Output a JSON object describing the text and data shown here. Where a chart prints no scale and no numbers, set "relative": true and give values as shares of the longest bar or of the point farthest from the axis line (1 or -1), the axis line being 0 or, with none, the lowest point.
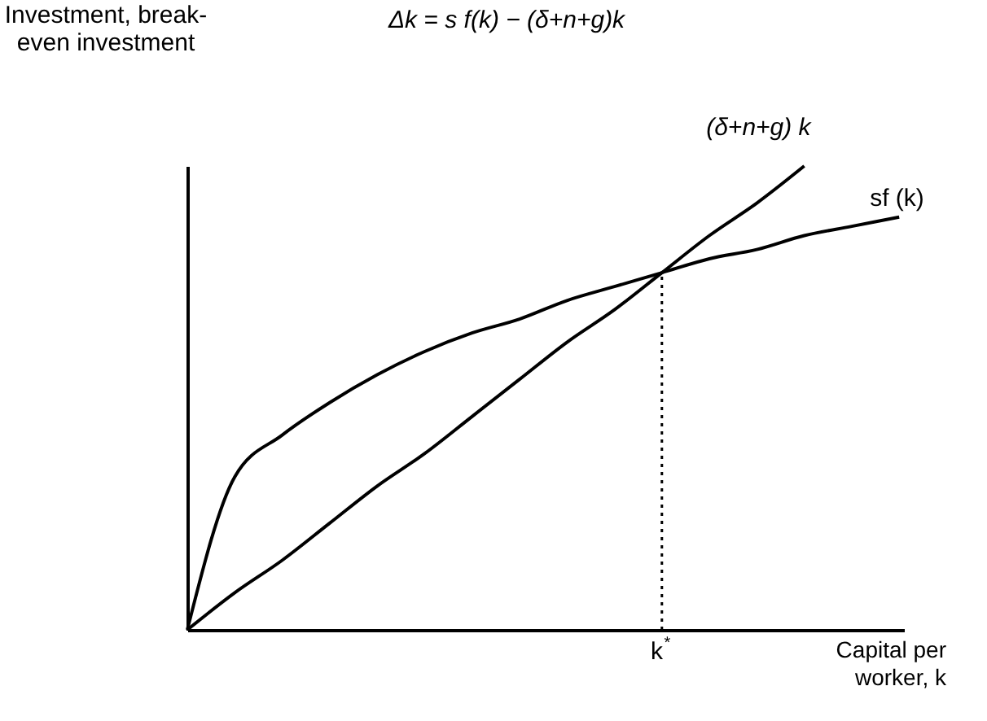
{
  "chart_data": {
    "type": "line",
    "relative": true,
    "title": "Δk = s f(k) − (δ+n+g)k",
    "ylabel": "Investment, break-even investment",
    "xlabel": "Capital per worker, k",
    "categories": [
      null,
      null,
      null,
      null,
      null,
      null,
      null,
      null,
      null,
      null,
      null,
      null,
      null,
      null,
      null,
      null
    ],
    "series": [
      {
        "name": "(δ+n+g) k",
        "color": "#000000",
        "values": [
          0,
          0.08,
          0.15,
          0.23,
          0.31,
          0.38,
          0.46,
          0.54,
          0.62,
          0.69,
          0.77,
          0.85,
          0.92,
          1,
          null,
          null
        ]
      },
      {
        "name": "sf (k)",
        "color": "#000000",
        "values": [
          0,
          0.33,
          0.42,
          0.49,
          0.55,
          0.6,
          0.64,
          0.67,
          0.71,
          0.74,
          0.77,
          0.8,
          0.82,
          0.85,
          0.87,
          0.89
        ]
      }
    ],
    "annotations": [
      "k$^{*}$"
    ],
    "marker": "none",
    "line_style": "solid"
  }
}
